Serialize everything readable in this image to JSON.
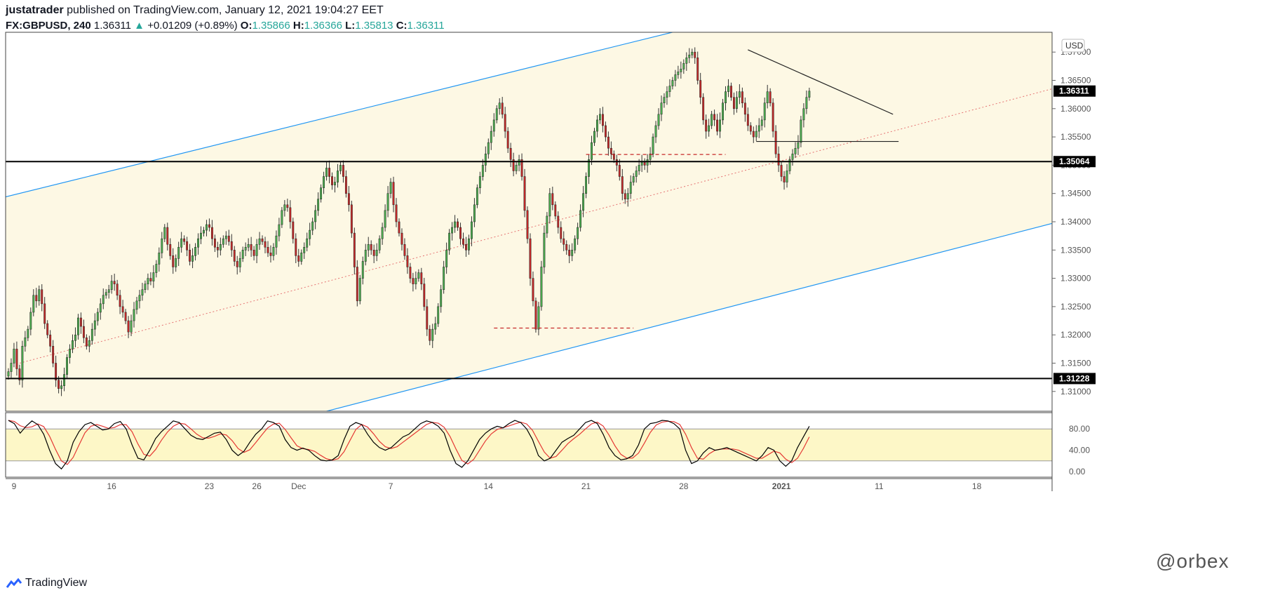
{
  "header": {
    "author": "justatrader",
    "published_text": "published on TradingView.com, January 12, 2021 19:04:27 EET",
    "symbol": "FX:GBPUSD, 240",
    "last": "1.36311",
    "change_arrow": "▲",
    "change": "+0.01209 (+0.89%)",
    "o_label": "O:",
    "o_value": "1.35866",
    "h_label": "H:",
    "h_value": "1.36366",
    "l_label": "L:",
    "l_value": "1.35813",
    "c_label": "C:",
    "c_value": "1.36311"
  },
  "footer": {
    "brand": "TradingView",
    "watermark": "@orbex"
  },
  "colors": {
    "up": "#4caf50",
    "down": "#c62828",
    "channel": "#2196f3",
    "band_fill": "#fdf8e4",
    "osc_band": "#fdf7c7",
    "median": "#e57373",
    "tag_bg": "#000000",
    "k_line": "#000000",
    "d_line": "#e53935"
  },
  "chart_data": [
    {
      "type": "candlestick",
      "title": "",
      "currency_label": "USD",
      "y_ticks": [
        "1.31000",
        "1.31500",
        "1.32000",
        "1.32500",
        "1.33000",
        "1.33500",
        "1.34000",
        "1.34500",
        "1.35000",
        "1.35500",
        "1.36000",
        "1.36500",
        "1.37000"
      ],
      "ylim": [
        1.3065,
        1.3735
      ],
      "x_ticks": [
        "9",
        "16",
        "23",
        "26",
        "Dec",
        "7",
        "14",
        "21",
        "28",
        "2021",
        "11",
        "18"
      ],
      "x_tick_bars": [
        3,
        38,
        73,
        90,
        105,
        138,
        173,
        208,
        243,
        278,
        313,
        348
      ],
      "xlim": [
        0,
        375
      ],
      "price_tags": [
        {
          "label": "1.36311",
          "value": 1.36311
        },
        {
          "label": "1.35064",
          "value": 1.35064
        },
        {
          "label": "1.31228",
          "value": 1.31228
        }
      ],
      "horizontal_lines": [
        1.35064,
        1.31228
      ],
      "channel": {
        "upper": [
          [
            0,
            1.3444
          ],
          [
            280,
            1.3785
          ]
        ],
        "lower": [
          [
            115,
            1.3065
          ],
          [
            375,
            1.3397
          ]
        ],
        "median": [
          [
            5,
            1.315
          ],
          [
            375,
            1.3635
          ]
        ]
      },
      "trendlines": [
        {
          "from": [
            266,
            1.3704
          ],
          "to": [
            318,
            1.359
          ],
          "style": "solid"
        },
        {
          "from": [
            269,
            1.3542
          ],
          "to": [
            320,
            1.3542
          ],
          "style": "solid"
        },
        {
          "from": [
            175,
            1.3212
          ],
          "to": [
            225,
            1.3212
          ],
          "style": "dashed"
        },
        {
          "from": [
            208,
            1.3519
          ],
          "to": [
            258,
            1.3519
          ],
          "style": "dashed"
        }
      ],
      "closes": [
        1.3135,
        1.315,
        1.3175,
        1.314,
        1.312,
        1.318,
        1.3195,
        1.321,
        1.324,
        1.327,
        1.326,
        1.328,
        1.3255,
        1.322,
        1.32,
        1.318,
        1.315,
        1.312,
        1.3105,
        1.311,
        1.313,
        1.316,
        1.3175,
        1.319,
        1.32,
        1.323,
        1.3215,
        1.3195,
        1.318,
        1.319,
        1.321,
        1.3225,
        1.324,
        1.3255,
        1.327,
        1.3275,
        1.328,
        1.3295,
        1.329,
        1.327,
        1.325,
        1.324,
        1.3225,
        1.3205,
        1.3225,
        1.3245,
        1.326,
        1.327,
        1.328,
        1.329,
        1.33,
        1.3295,
        1.331,
        1.3325,
        1.3345,
        1.337,
        1.339,
        1.336,
        1.334,
        1.332,
        1.3335,
        1.3355,
        1.337,
        1.3365,
        1.335,
        1.333,
        1.334,
        1.3355,
        1.337,
        1.338,
        1.3385,
        1.3395,
        1.339,
        1.337,
        1.3355,
        1.335,
        1.336,
        1.337,
        1.3375,
        1.3365,
        1.335,
        1.333,
        1.332,
        1.3335,
        1.335,
        1.3355,
        1.336,
        1.335,
        1.334,
        1.336,
        1.337,
        1.3365,
        1.3355,
        1.3345,
        1.334,
        1.3355,
        1.3375,
        1.3395,
        1.342,
        1.343,
        1.3425,
        1.34,
        1.337,
        1.334,
        1.333,
        1.3345,
        1.3355,
        1.337,
        1.3385,
        1.34,
        1.342,
        1.344,
        1.346,
        1.348,
        1.3495,
        1.348,
        1.3465,
        1.347,
        1.349,
        1.35,
        1.348,
        1.345,
        1.343,
        1.338,
        1.332,
        1.326,
        1.33,
        1.333,
        1.335,
        1.336,
        1.335,
        1.334,
        1.335,
        1.337,
        1.339,
        1.342,
        1.345,
        1.347,
        1.343,
        1.34,
        1.338,
        1.336,
        1.334,
        1.332,
        1.33,
        1.329,
        1.33,
        1.331,
        1.329,
        1.325,
        1.321,
        1.319,
        1.321,
        1.322,
        1.325,
        1.328,
        1.332,
        1.335,
        1.338,
        1.339,
        1.34,
        1.339,
        1.337,
        1.336,
        1.335,
        1.337,
        1.34,
        1.343,
        1.346,
        1.348,
        1.35,
        1.352,
        1.354,
        1.356,
        1.358,
        1.36,
        1.361,
        1.359,
        1.356,
        1.353,
        1.351,
        1.349,
        1.35,
        1.351,
        1.348,
        1.342,
        1.337,
        1.33,
        1.326,
        1.321,
        1.325,
        1.332,
        1.338,
        1.341,
        1.345,
        1.343,
        1.341,
        1.339,
        1.337,
        1.336,
        1.335,
        1.334,
        1.335,
        1.337,
        1.339,
        1.342,
        1.345,
        1.348,
        1.351,
        1.354,
        1.356,
        1.358,
        1.359,
        1.357,
        1.355,
        1.353,
        1.352,
        1.351,
        1.35,
        1.348,
        1.345,
        1.344,
        1.345,
        1.347,
        1.348,
        1.349,
        1.35,
        1.3505,
        1.35,
        1.351,
        1.352,
        1.355,
        1.357,
        1.359,
        1.361,
        1.362,
        1.363,
        1.364,
        1.365,
        1.366,
        1.3665,
        1.367,
        1.368,
        1.369,
        1.3695,
        1.37,
        1.369,
        1.365,
        1.362,
        1.358,
        1.356,
        1.357,
        1.359,
        1.358,
        1.356,
        1.358,
        1.361,
        1.363,
        1.364,
        1.362,
        1.36,
        1.362,
        1.363,
        1.361,
        1.359,
        1.357,
        1.356,
        1.355,
        1.356,
        1.357,
        1.358,
        1.361,
        1.363,
        1.361,
        1.356,
        1.352,
        1.35,
        1.348,
        1.347,
        1.349,
        1.351,
        1.352,
        1.353,
        1.354,
        1.358,
        1.36,
        1.362,
        1.3631
      ],
      "osc_ticks": [
        "0.00",
        "40.00",
        "80.00"
      ],
      "osc_band": [
        20,
        80
      ],
      "k_period_profile": [
        96,
        90,
        72,
        85,
        95,
        88,
        70,
        40,
        15,
        5,
        20,
        55,
        75,
        88,
        92,
        85,
        78,
        80,
        90,
        94,
        80,
        50,
        25,
        22,
        40,
        62,
        75,
        85,
        95,
        92,
        80,
        68,
        62,
        60,
        66,
        72,
        74,
        60,
        40,
        30,
        38,
        55,
        70,
        80,
        95,
        92,
        85,
        60,
        45,
        40,
        44,
        40,
        30,
        22,
        20,
        22,
        30,
        60,
        85,
        92,
        88,
        70,
        55,
        45,
        40,
        45,
        55,
        65,
        70,
        80,
        90,
        95,
        92,
        85,
        72,
        40,
        15,
        8,
        20,
        40,
        60,
        72,
        80,
        85,
        82,
        90,
        96,
        92,
        80,
        60,
        30,
        20,
        25,
        40,
        55,
        62,
        68,
        80,
        92,
        96,
        90,
        70,
        45,
        30,
        22,
        24,
        30,
        50,
        80,
        90,
        92,
        96,
        95,
        90,
        80,
        40,
        15,
        20,
        35,
        45,
        40,
        42,
        45,
        40,
        35,
        30,
        25,
        20,
        30,
        45,
        40,
        20,
        10,
        20,
        45,
        65,
        85
      ]
    }
  ]
}
